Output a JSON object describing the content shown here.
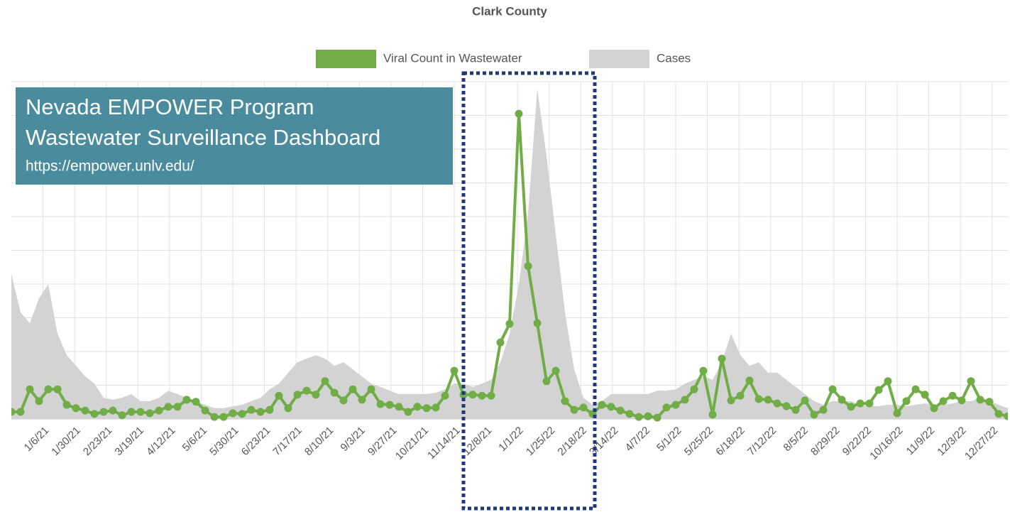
{
  "chart_data": {
    "type": "line",
    "title": "Clark County",
    "annotations": [
      "Nevada EMPOWER Program",
      "Wastewater Surveillance Dashboard",
      "https://empower.unlv.edu/"
    ],
    "x": [
      "12/13/20",
      "12/20/20",
      "12/27/20",
      "1/3/21",
      "1/10/21",
      "1/17/21",
      "1/24/21",
      "1/31/21",
      "2/7/21",
      "2/14/21",
      "2/21/21",
      "2/28/21",
      "3/7/21",
      "3/14/21",
      "3/21/21",
      "3/28/21",
      "4/4/21",
      "4/11/21",
      "4/18/21",
      "4/25/21",
      "5/2/21",
      "5/9/21",
      "5/16/21",
      "5/23/21",
      "5/30/21",
      "6/6/21",
      "6/13/21",
      "6/20/21",
      "6/27/21",
      "7/4/21",
      "7/11/21",
      "7/18/21",
      "7/25/21",
      "8/1/21",
      "8/8/21",
      "8/15/21",
      "8/22/21",
      "8/29/21",
      "9/5/21",
      "9/12/21",
      "9/19/21",
      "9/26/21",
      "10/3/21",
      "10/10/21",
      "10/17/21",
      "10/24/21",
      "10/31/21",
      "11/7/21",
      "11/14/21",
      "11/21/21",
      "11/28/21",
      "12/5/21",
      "12/12/21",
      "12/19/21",
      "12/26/21",
      "1/2/22",
      "1/9/22",
      "1/16/22",
      "1/23/22",
      "1/30/22",
      "2/6/22",
      "2/13/22",
      "2/20/22",
      "2/27/22",
      "3/6/22",
      "3/13/22",
      "3/20/22",
      "3/27/22",
      "4/3/22",
      "4/10/22",
      "4/17/22",
      "4/24/22",
      "5/1/22",
      "5/8/22",
      "5/15/22",
      "5/22/22",
      "5/29/22",
      "6/5/22",
      "6/12/22",
      "6/19/22",
      "6/26/22",
      "7/3/22",
      "7/10/22",
      "7/17/22",
      "7/24/22",
      "7/31/22",
      "8/7/22",
      "8/14/22",
      "8/21/22",
      "8/28/22",
      "9/4/22",
      "9/11/22",
      "9/18/22",
      "9/25/22",
      "10/2/22",
      "10/9/22",
      "10/16/22",
      "10/23/22",
      "10/30/22",
      "11/6/22",
      "11/13/22",
      "11/20/22",
      "11/27/22",
      "12/4/22",
      "12/11/22",
      "12/18/22",
      "12/25/22",
      "1/1/23",
      "1/8/23"
    ],
    "xlim": [
      "12/13/20",
      "1/8/23"
    ],
    "xticks": [
      "1/6/21",
      "1/30/21",
      "2/23/21",
      "3/19/21",
      "4/12/21",
      "5/6/21",
      "5/30/21",
      "6/23/21",
      "7/17/21",
      "8/10/21",
      "9/3/21",
      "9/27/21",
      "10/21/21",
      "11/14/21",
      "12/8/21",
      "1/1/22",
      "1/25/22",
      "2/18/22",
      "3/14/22",
      "4/7/22",
      "5/1/22",
      "5/25/22",
      "6/18/22",
      "7/12/22",
      "8/5/22",
      "8/29/22",
      "9/22/22",
      "10/16/22",
      "11/9/22",
      "12/3/22",
      "12/27/22"
    ],
    "ylim": [
      0,
      100
    ],
    "yticks": [
      0,
      10,
      20,
      30,
      40,
      50,
      60,
      70,
      80,
      90,
      100
    ],
    "grid": true,
    "series": [
      {
        "name": "Viral Count in Wastewater",
        "color": "#70ad47",
        "type": "line",
        "values": [
          2.1,
          2.1,
          8.8,
          5.3,
          8.8,
          8.8,
          4.2,
          3.2,
          2.5,
          1.5,
          2.1,
          2.5,
          1.1,
          2.1,
          2.1,
          1.7,
          2.5,
          3.6,
          3.6,
          5.7,
          5.1,
          2.5,
          0.6,
          0.6,
          1.7,
          1.5,
          2.7,
          2.1,
          2.7,
          6.9,
          3.2,
          7.2,
          8.4,
          7.2,
          11.2,
          7.8,
          5.5,
          8.8,
          5.7,
          8.8,
          4.4,
          4.2,
          3.6,
          2.1,
          3.6,
          3.2,
          3.4,
          6.9,
          14.3,
          7.2,
          7.2,
          6.9,
          6.9,
          22.7,
          28.2,
          90.5,
          45.3,
          28.4,
          11.2,
          14.3,
          5.3,
          2.7,
          3.4,
          1.5,
          4.2,
          3.6,
          2.5,
          1.5,
          0.6,
          0.8,
          0.4,
          3.4,
          4.2,
          5.7,
          8.8,
          14.3,
          1.3,
          17.9,
          5.5,
          6.9,
          11.4,
          5.9,
          5.7,
          4.6,
          3.8,
          2.7,
          5.5,
          1.3,
          2.7,
          8.8,
          5.7,
          3.6,
          4.6,
          4.6,
          8.6,
          11.2,
          1.7,
          5.3,
          8.8,
          7.2,
          3.2,
          5.3,
          6.9,
          5.5,
          11.2,
          5.7,
          5.1,
          1.5,
          0.8
        ]
      },
      {
        "name": "Cases",
        "color": "#d3d3d3",
        "type": "area",
        "values": [
          43,
          31.6,
          28.4,
          35.8,
          40,
          25.3,
          18.9,
          15.8,
          12.6,
          10.5,
          6.3,
          5.7,
          6.3,
          7.4,
          5.3,
          5.3,
          6.3,
          8.4,
          7.4,
          6.3,
          5.3,
          4.2,
          3.2,
          3.2,
          3.8,
          4.2,
          5.3,
          6.3,
          8.8,
          10.5,
          13.7,
          16.8,
          17.9,
          18.9,
          17.9,
          15.8,
          16.8,
          14.7,
          12.6,
          10.5,
          9.5,
          8.4,
          7.4,
          7.4,
          7.4,
          7.4,
          7.8,
          8.8,
          10.5,
          10.5,
          9.5,
          10.5,
          11.6,
          16.8,
          25.3,
          40,
          61,
          97.9,
          77.9,
          54.7,
          31.6,
          14.7,
          6.3,
          4.2,
          5.3,
          7.4,
          7.4,
          7.4,
          7.4,
          7.4,
          8.4,
          8.4,
          8.8,
          10.5,
          11.6,
          12.6,
          11.6,
          16.8,
          25.3,
          18.9,
          15.8,
          16.8,
          13.7,
          13.7,
          11.6,
          9.5,
          7.4,
          5.3,
          4.2,
          5.3,
          5.3,
          5.3,
          4.2,
          3.8,
          3.8,
          4.2,
          4.2,
          3.8,
          4.2,
          4.6,
          4.2,
          4.2,
          4.6,
          5.3,
          5.3,
          6.3,
          5.3,
          4.2,
          3.2
        ]
      }
    ]
  }
}
